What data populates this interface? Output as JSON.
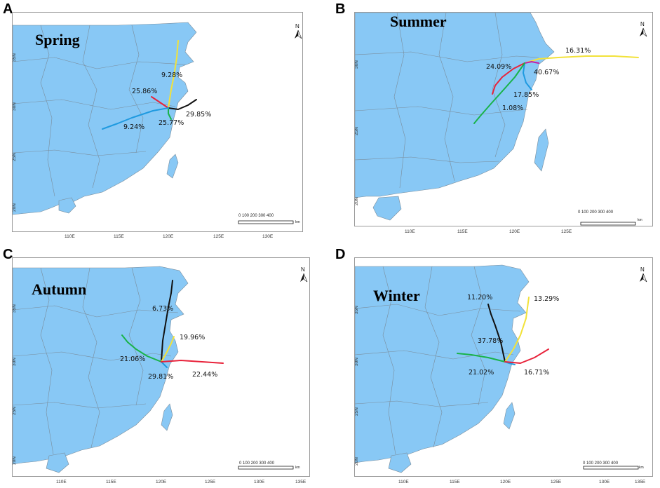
{
  "colors": {
    "land": "#88c8f5",
    "border": "#7a8d9c",
    "sea": "#ffffff",
    "red": "#e8223a",
    "yellow": "#f2e23a",
    "black": "#111111",
    "green": "#19b34a",
    "blue": "#1f9ae0",
    "magenta": "#c21fa5"
  },
  "icons": {
    "north_arrow": "north-arrow-icon"
  },
  "scale": {
    "numbers": "0   100  200  300  400",
    "unit": "km"
  },
  "panels": [
    {
      "letter": "A",
      "season": "Spring",
      "lat_labels": [
        "35N",
        "30N",
        "25N",
        "20N"
      ],
      "lon_labels": [
        "110E",
        "115E",
        "120E",
        "125E",
        "130E"
      ],
      "trajectories": [
        {
          "color": "yellow",
          "percent": "9.28%"
        },
        {
          "color": "red",
          "percent": "25.86%"
        },
        {
          "color": "black",
          "percent": "29.85%"
        },
        {
          "color": "green",
          "percent": "25.77%"
        },
        {
          "color": "blue",
          "percent": "9.24%"
        }
      ]
    },
    {
      "letter": "B",
      "season": "Summer",
      "lat_labels": [
        "30N",
        "25N",
        "20N"
      ],
      "lon_labels": [
        "110E",
        "115E",
        "120E",
        "125E"
      ],
      "trajectories": [
        {
          "color": "yellow",
          "percent": "16.31%"
        },
        {
          "color": "red",
          "percent": "24.09%"
        },
        {
          "color": "magenta",
          "percent": "40.67%"
        },
        {
          "color": "blue",
          "percent": "17.85%"
        },
        {
          "color": "green",
          "percent": "1.08%"
        }
      ]
    },
    {
      "letter": "C",
      "season": "Autumn",
      "lat_labels": [
        "35N",
        "30N",
        "25N",
        "20N"
      ],
      "lon_labels": [
        "110E",
        "115E",
        "120E",
        "125E",
        "130E",
        "135E"
      ],
      "trajectories": [
        {
          "color": "black",
          "percent": "6.73%"
        },
        {
          "color": "yellow",
          "percent": "19.96%"
        },
        {
          "color": "green",
          "percent": "21.06%"
        },
        {
          "color": "blue",
          "percent": "29.81%"
        },
        {
          "color": "red",
          "percent": "22.44%"
        }
      ]
    },
    {
      "letter": "D",
      "season": "Winter",
      "lat_labels": [
        "35N",
        "30N",
        "25N",
        "20N"
      ],
      "lon_labels": [
        "110E",
        "115E",
        "120E",
        "125E",
        "130E",
        "135E"
      ],
      "trajectories": [
        {
          "color": "black",
          "percent": "11.20%"
        },
        {
          "color": "yellow",
          "percent": "13.29%"
        },
        {
          "color": "blue",
          "percent": "37.78%"
        },
        {
          "color": "green",
          "percent": "21.02%"
        },
        {
          "color": "red",
          "percent": "16.71%"
        }
      ]
    }
  ]
}
